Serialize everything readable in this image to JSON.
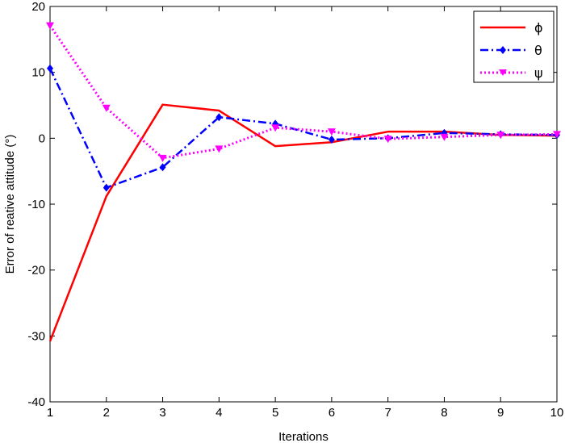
{
  "chart_data": {
    "type": "line",
    "xlabel": "Iterations",
    "ylabel": "Error of reative attitude (°)",
    "xlim": [
      1,
      10
    ],
    "ylim": [
      -40,
      20
    ],
    "x": [
      1,
      2,
      3,
      4,
      5,
      6,
      7,
      8,
      9,
      10
    ],
    "xticks": [
      "1",
      "2",
      "3",
      "4",
      "5",
      "6",
      "7",
      "8",
      "9",
      "10"
    ],
    "yticks": [
      -40,
      -30,
      -20,
      -10,
      0,
      10,
      20
    ],
    "ytick_labels": [
      "-40",
      "-30",
      "-20",
      "-10",
      "0",
      "10",
      "20"
    ],
    "grid": false,
    "legend_position": "top-right",
    "series": [
      {
        "name": "ϕ",
        "color": "#ff0000",
        "style": "solid",
        "marker": "none",
        "values": [
          -30.8,
          -8.8,
          5.1,
          4.2,
          -1.2,
          -0.6,
          1.0,
          1.0,
          0.5,
          0.4
        ]
      },
      {
        "name": "θ",
        "color": "#0000ff",
        "style": "dashdot",
        "marker": "diamond",
        "values": [
          10.6,
          -7.5,
          -4.4,
          3.2,
          2.2,
          -0.2,
          0.0,
          0.8,
          0.6,
          0.5
        ]
      },
      {
        "name": "ψ",
        "color": "#ff00ff",
        "style": "dotted",
        "marker": "triangle-down",
        "values": [
          17.1,
          4.6,
          -3.0,
          -1.6,
          1.6,
          1.0,
          -0.1,
          0.2,
          0.5,
          0.6
        ]
      }
    ]
  }
}
